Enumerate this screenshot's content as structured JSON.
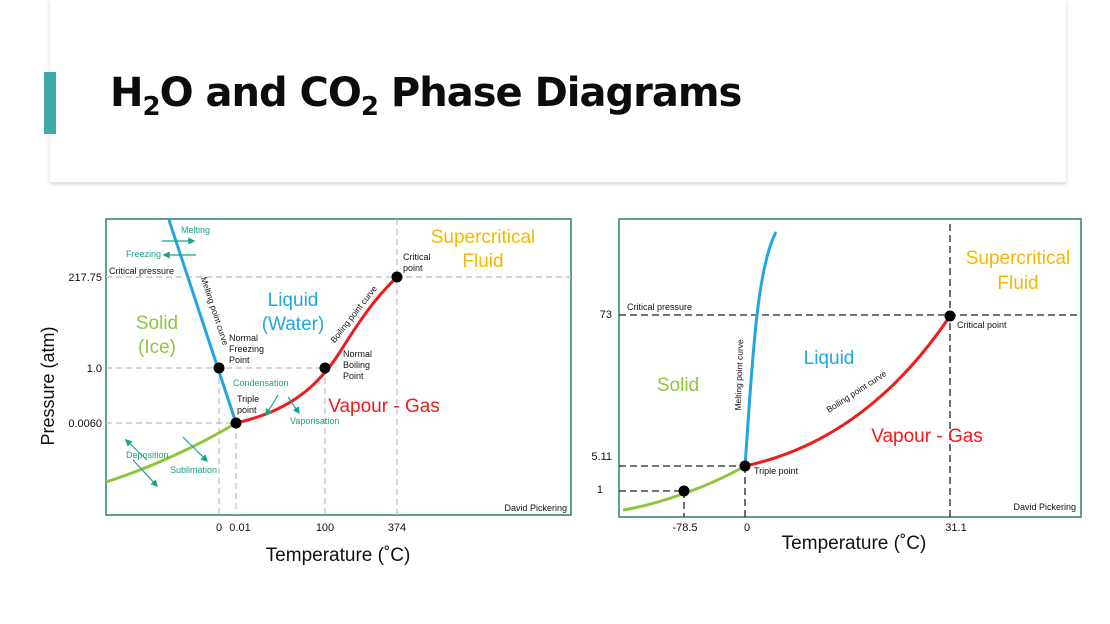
{
  "slide": {
    "accent_color": "#3ea9a6",
    "title_parts": [
      "H",
      "2",
      "O and CO",
      "2",
      " Phase Diagrams"
    ]
  },
  "colors": {
    "solid": "#8cc63f",
    "liquid": "#20a6e0",
    "gas": "#ee1c1c",
    "supercritical": "#f5b800",
    "process": "#1aa28b",
    "frame": "#2f7d78"
  },
  "h2o": {
    "ylabel": "Pressure (atm)",
    "xlabel": "Temperature (˚C)",
    "y_ticks": [
      "217.75",
      "1.0",
      "0.0060"
    ],
    "x_ticks": [
      "0",
      "0.01",
      "100",
      "374"
    ],
    "regions": {
      "solid": [
        "Solid",
        "(Ice)"
      ],
      "liquid": [
        "Liquid",
        "(Water)"
      ],
      "gas": "Vapour - Gas",
      "supercritical": [
        "Supercritical",
        "Fluid"
      ]
    },
    "curves": {
      "melting": "Melting point curve",
      "boiling": "Boiling point curve"
    },
    "points": {
      "critical": [
        "Critical",
        "point"
      ],
      "critical_pressure": "Critical pressure",
      "freezing": [
        "Normal",
        "Freezing",
        "Point"
      ],
      "boiling": [
        "Normal",
        "Boiling",
        "Point"
      ],
      "triple": [
        "Triple",
        "point"
      ]
    },
    "processes": {
      "melting": "Melting",
      "freezing": "Freezing",
      "condensation": "Condensation",
      "vaporisation": "Vaporisation",
      "deposition": "Deposition",
      "sublimation": "Sublimation"
    },
    "credit": "David Pickering"
  },
  "co2": {
    "xlabel": "Temperature (˚C)",
    "y_ticks": [
      "73",
      "5.11",
      "1"
    ],
    "x_ticks": [
      "-78.5",
      "0",
      "31.1"
    ],
    "regions": {
      "solid": "Solid",
      "liquid": "Liquid",
      "gas": "Vapour - Gas",
      "supercritical": [
        "Supercritical",
        "Fluid"
      ]
    },
    "curves": {
      "melting": "Melting point curve",
      "boiling": "Boiling point curve"
    },
    "points": {
      "critical": "Critical point",
      "critical_pressure": "Critical pressure",
      "triple": "Triple point"
    },
    "credit": "David Pickering"
  }
}
